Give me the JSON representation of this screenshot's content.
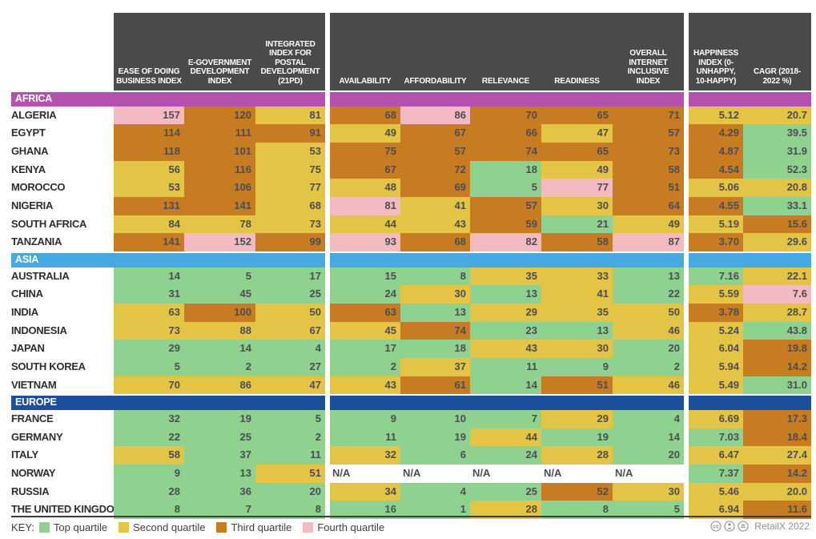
{
  "colors": {
    "q1": "#8fd18f",
    "q2": "#e4c444",
    "q3": "#c77c22",
    "q4": "#f4bac1",
    "na": "#ffffff",
    "header_bg": "#4a4a4c",
    "africa": "#b552af",
    "asia": "#46a9e1",
    "europe": "#1d4f9b"
  },
  "chart_data": {
    "type": "table",
    "quartile_legend": {
      "1": "Top quartile",
      "2": "Second quartile",
      "3": "Third quartile",
      "4": "Fourth quartile",
      "0": "N/A"
    },
    "columns": [
      "EASE OF DOING BUSINESS INDEX",
      "E-GOVERNMENT DEVELOPMENT INDEX",
      "INTEGRATED INDEX FOR POSTAL DEVELOPMENT (21PD)",
      "AVAILABILITY",
      "AFFORDABILITY",
      "RELEVANCE",
      "READINESS",
      "OVERALL INTERNET INCLUSIVE INDEX",
      "HAPPINESS INDEX (0-UNHAPPY, 10-HAPPY)",
      "CAGR (2018-2022 %)"
    ],
    "header_groups": [
      {
        "columns": [
          "EASE OF DOING BUSINESS INDEX",
          "E-GOVERNMENT DEVELOPMENT INDEX",
          "INTEGRATED INDEX FOR POSTAL DEVELOPMENT (21PD)"
        ]
      },
      {
        "columns": [
          "AVAILABILITY",
          "AFFORDABILITY",
          "RELEVANCE",
          "READINESS",
          "OVERALL INTERNET INCLUSIVE INDEX"
        ]
      },
      {
        "columns": [
          "HAPPINESS INDEX (0-UNHAPPY, 10-HAPPY)",
          "CAGR (2018-2022 %)"
        ]
      }
    ],
    "sections": [
      {
        "name": "AFRICA",
        "color_key": "africa",
        "rows": [
          {
            "country": "ALGERIA",
            "values": [
              "157",
              "120",
              "81",
              "68",
              "86",
              "70",
              "65",
              "71",
              "5.12",
              "20.7"
            ],
            "quartiles": [
              4,
              3,
              2,
              3,
              4,
              3,
              3,
              3,
              2,
              2
            ]
          },
          {
            "country": "EGYPT",
            "values": [
              "114",
              "111",
              "91",
              "49",
              "67",
              "66",
              "47",
              "57",
              "4.29",
              "39.5"
            ],
            "quartiles": [
              3,
              3,
              3,
              2,
              3,
              3,
              2,
              3,
              3,
              1
            ]
          },
          {
            "country": "GHANA",
            "values": [
              "118",
              "101",
              "53",
              "75",
              "57",
              "74",
              "65",
              "73",
              "4.87",
              "31.9"
            ],
            "quartiles": [
              3,
              3,
              2,
              3,
              3,
              3,
              3,
              3,
              3,
              1
            ]
          },
          {
            "country": "KENYA",
            "values": [
              "56",
              "116",
              "75",
              "67",
              "72",
              "18",
              "49",
              "58",
              "4.54",
              "52.3"
            ],
            "quartiles": [
              2,
              3,
              2,
              3,
              3,
              1,
              2,
              3,
              3,
              1
            ]
          },
          {
            "country": "MOROCCO",
            "values": [
              "53",
              "106",
              "77",
              "48",
              "69",
              "5",
              "77",
              "51",
              "5.06",
              "20.8"
            ],
            "quartiles": [
              2,
              3,
              2,
              2,
              3,
              1,
              4,
              3,
              2,
              2
            ]
          },
          {
            "country": "NIGERIA",
            "values": [
              "131",
              "141",
              "68",
              "81",
              "41",
              "57",
              "30",
              "64",
              "4.55",
              "33.1"
            ],
            "quartiles": [
              3,
              3,
              2,
              4,
              2,
              3,
              2,
              3,
              3,
              1
            ]
          },
          {
            "country": "SOUTH AFRICA",
            "values": [
              "84",
              "78",
              "73",
              "44",
              "43",
              "59",
              "21",
              "49",
              "5.19",
              "15.6"
            ],
            "quartiles": [
              2,
              2,
              2,
              2,
              2,
              3,
              1,
              2,
              2,
              3
            ]
          },
          {
            "country": "TANZANIA",
            "values": [
              "141",
              "152",
              "99",
              "93",
              "68",
              "82",
              "58",
              "87",
              "3.70",
              "29.6"
            ],
            "quartiles": [
              3,
              4,
              3,
              4,
              3,
              4,
              3,
              4,
              3,
              2
            ]
          }
        ]
      },
      {
        "name": "ASIA",
        "color_key": "asia",
        "rows": [
          {
            "country": "AUSTRALIA",
            "values": [
              "14",
              "5",
              "17",
              "15",
              "8",
              "35",
              "33",
              "13",
              "7.16",
              "22.1"
            ],
            "quartiles": [
              1,
              1,
              1,
              1,
              1,
              2,
              2,
              1,
              1,
              2
            ]
          },
          {
            "country": "CHINA",
            "values": [
              "31",
              "45",
              "25",
              "24",
              "30",
              "13",
              "41",
              "22",
              "5.59",
              "7.6"
            ],
            "quartiles": [
              1,
              1,
              1,
              1,
              2,
              1,
              2,
              1,
              2,
              4
            ]
          },
          {
            "country": "INDIA",
            "values": [
              "63",
              "100",
              "50",
              "63",
              "13",
              "29",
              "35",
              "50",
              "3.78",
              "28.7"
            ],
            "quartiles": [
              2,
              3,
              2,
              3,
              1,
              2,
              2,
              2,
              3,
              2
            ]
          },
          {
            "country": "INDONESIA",
            "values": [
              "73",
              "88",
              "67",
              "45",
              "74",
              "23",
              "13",
              "46",
              "5.24",
              "43.8"
            ],
            "quartiles": [
              2,
              2,
              2,
              2,
              3,
              1,
              1,
              2,
              2,
              1
            ]
          },
          {
            "country": "JAPAN",
            "values": [
              "29",
              "14",
              "4",
              "17",
              "18",
              "43",
              "30",
              "20",
              "6.04",
              "19.8"
            ],
            "quartiles": [
              1,
              1,
              1,
              1,
              1,
              2,
              2,
              1,
              2,
              3
            ]
          },
          {
            "country": "SOUTH KOREA",
            "values": [
              "5",
              "2",
              "27",
              "2",
              "37",
              "11",
              "9",
              "2",
              "5.94",
              "14.2"
            ],
            "quartiles": [
              1,
              1,
              1,
              1,
              2,
              1,
              1,
              1,
              2,
              3
            ]
          },
          {
            "country": "VIETNAM",
            "values": [
              "70",
              "86",
              "47",
              "43",
              "61",
              "14",
              "51",
              "46",
              "5.49",
              "31.0"
            ],
            "quartiles": [
              2,
              2,
              2,
              2,
              3,
              1,
              3,
              2,
              2,
              1
            ]
          }
        ]
      },
      {
        "name": "EUROPE",
        "color_key": "europe",
        "rows": [
          {
            "country": "FRANCE",
            "values": [
              "32",
              "19",
              "5",
              "9",
              "10",
              "7",
              "29",
              "4",
              "6.69",
              "17.3"
            ],
            "quartiles": [
              1,
              1,
              1,
              1,
              1,
              1,
              2,
              1,
              2,
              3
            ]
          },
          {
            "country": "GERMANY",
            "values": [
              "22",
              "25",
              "2",
              "11",
              "19",
              "44",
              "19",
              "14",
              "7.03",
              "18.4"
            ],
            "quartiles": [
              1,
              1,
              1,
              1,
              1,
              2,
              1,
              1,
              1,
              3
            ]
          },
          {
            "country": "ITALY",
            "values": [
              "58",
              "37",
              "11",
              "32",
              "6",
              "24",
              "28",
              "20",
              "6.47",
              "27.4"
            ],
            "quartiles": [
              2,
              1,
              1,
              2,
              1,
              1,
              2,
              1,
              2,
              2
            ]
          },
          {
            "country": "NORWAY",
            "values": [
              "9",
              "13",
              "51",
              "N/A",
              "N/A",
              "N/A",
              "N/A",
              "N/A",
              "7.37",
              "14.2"
            ],
            "quartiles": [
              1,
              1,
              2,
              0,
              0,
              0,
              0,
              0,
              1,
              3
            ]
          },
          {
            "country": "RUSSIA",
            "values": [
              "28",
              "36",
              "20",
              "34",
              "4",
              "25",
              "52",
              "30",
              "5.46",
              "20.0"
            ],
            "quartiles": [
              1,
              1,
              1,
              2,
              1,
              1,
              3,
              2,
              2,
              2
            ]
          },
          {
            "country": "THE UNITED KINGDOM",
            "values": [
              "8",
              "7",
              "8",
              "16",
              "1",
              "28",
              "8",
              "5",
              "6.94",
              "11.6"
            ],
            "quartiles": [
              1,
              1,
              1,
              1,
              1,
              2,
              1,
              1,
              2,
              3
            ]
          }
        ]
      }
    ]
  },
  "key": {
    "label": "KEY:",
    "items": [
      {
        "label": "Top quartile",
        "quartile": 1
      },
      {
        "label": "Second quartile",
        "quartile": 2
      },
      {
        "label": "Third quartile",
        "quartile": 3
      },
      {
        "label": "Fourth quartile",
        "quartile": 4
      }
    ]
  },
  "footer": {
    "credit": "RetailX 2022",
    "icons": [
      "cc-icon",
      "attribution-icon",
      "equals-icon"
    ]
  }
}
